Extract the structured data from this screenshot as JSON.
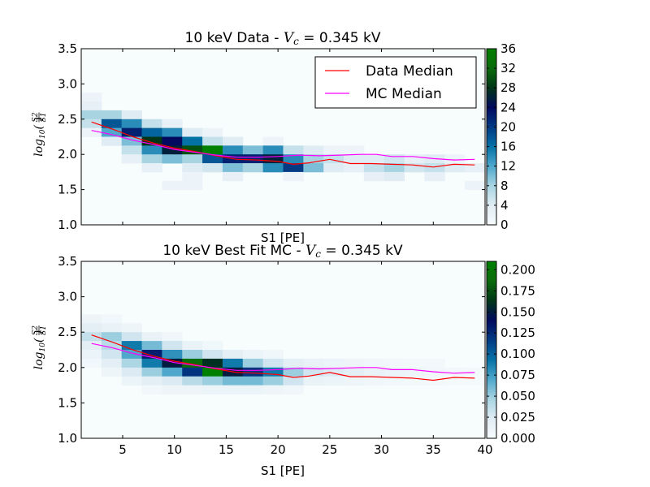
{
  "colors": {
    "data_median": "#ff0000",
    "mc_median": "#ff00ff",
    "colormap": [
      "#f7fcfd",
      "#e0ecf4",
      "#a8d4e2",
      "#4fa8cc",
      "#0572a6",
      "#023a84",
      "#010a5e",
      "#003617",
      "#0b6b0b",
      "#008000"
    ]
  },
  "chart_data": [
    {
      "type": "heatmap",
      "title": "10 keV Data - V_c = 0.345 kV",
      "title_parts": {
        "prefix": "10 keV Data - ",
        "var": "V",
        "sub": "c",
        "suffix": " = 0.345 kV"
      },
      "xlabel": "S1 [PE]",
      "ylabel": "log10(S2/S1)",
      "xlim": [
        1,
        40
      ],
      "ylim": [
        1.0,
        3.5
      ],
      "xticks": [
        5,
        10,
        15,
        20,
        25,
        30,
        35,
        40
      ],
      "xtick_labels_shown": false,
      "yticks": [
        1.0,
        1.5,
        2.0,
        2.5,
        3.0,
        3.5
      ],
      "grid": false,
      "legend": {
        "placement": "top-right",
        "entries": [
          "Data Median",
          "MC Median"
        ]
      },
      "colorbar": {
        "range": [
          0,
          36
        ],
        "ticks": [
          "0",
          "4",
          "8",
          "12",
          "16",
          "20",
          "24",
          "28",
          "32",
          "36"
        ]
      },
      "bins": {
        "x_start": 1,
        "x_width": 1.95,
        "y_start": 1.0,
        "y_height": 0.125
      },
      "cells": [
        [
          0,
          14,
          2
        ],
        [
          0,
          13,
          3
        ],
        [
          0,
          12,
          8
        ],
        [
          0,
          11,
          6
        ],
        [
          0,
          10,
          2
        ],
        [
          1,
          12,
          8
        ],
        [
          1,
          11,
          18
        ],
        [
          1,
          10,
          12
        ],
        [
          1,
          9,
          4
        ],
        [
          2,
          12,
          4
        ],
        [
          2,
          11,
          14
        ],
        [
          2,
          10,
          22
        ],
        [
          2,
          9,
          10
        ],
        [
          2,
          8,
          6
        ],
        [
          2,
          7,
          3
        ],
        [
          3,
          11,
          6
        ],
        [
          3,
          10,
          17
        ],
        [
          3,
          9,
          28
        ],
        [
          3,
          8,
          14
        ],
        [
          3,
          7,
          8
        ],
        [
          3,
          6,
          3
        ],
        [
          4,
          11,
          3
        ],
        [
          4,
          10,
          14
        ],
        [
          4,
          9,
          24
        ],
        [
          4,
          8,
          26
        ],
        [
          4,
          7,
          10
        ],
        [
          4,
          4,
          2
        ],
        [
          5,
          10,
          4
        ],
        [
          5,
          9,
          16
        ],
        [
          5,
          8,
          30
        ],
        [
          5,
          7,
          8
        ],
        [
          5,
          6,
          4
        ],
        [
          5,
          5,
          2
        ],
        [
          5,
          4,
          2
        ],
        [
          6,
          10,
          2
        ],
        [
          6,
          9,
          6
        ],
        [
          6,
          8,
          36
        ],
        [
          6,
          7,
          18
        ],
        [
          6,
          6,
          5
        ],
        [
          7,
          9,
          4
        ],
        [
          7,
          8,
          14
        ],
        [
          7,
          7,
          22
        ],
        [
          7,
          6,
          10
        ],
        [
          7,
          5,
          3
        ],
        [
          8,
          8,
          10
        ],
        [
          8,
          7,
          22
        ],
        [
          8,
          6,
          8
        ],
        [
          9,
          9,
          2
        ],
        [
          9,
          8,
          14
        ],
        [
          9,
          7,
          26
        ],
        [
          9,
          6,
          14
        ],
        [
          10,
          8,
          6
        ],
        [
          10,
          7,
          14
        ],
        [
          10,
          6,
          20
        ],
        [
          10,
          5,
          2
        ],
        [
          11,
          8,
          4
        ],
        [
          11,
          7,
          8
        ],
        [
          11,
          6,
          10
        ],
        [
          12,
          8,
          2
        ],
        [
          12,
          7,
          6
        ],
        [
          12,
          6,
          4
        ],
        [
          13,
          8,
          2
        ],
        [
          13,
          7,
          4
        ],
        [
          13,
          6,
          3
        ],
        [
          14,
          7,
          4
        ],
        [
          14,
          6,
          6
        ],
        [
          14,
          5,
          3
        ],
        [
          15,
          7,
          5
        ],
        [
          15,
          6,
          8
        ],
        [
          15,
          5,
          4
        ],
        [
          16,
          7,
          3
        ],
        [
          16,
          6,
          5
        ],
        [
          17,
          7,
          4
        ],
        [
          17,
          6,
          6
        ],
        [
          17,
          5,
          3
        ],
        [
          18,
          7,
          2
        ],
        [
          18,
          6,
          4
        ],
        [
          19,
          6,
          3
        ],
        [
          19,
          4,
          2
        ],
        [
          20,
          6,
          2
        ],
        [
          21,
          6,
          2
        ],
        [
          22,
          6,
          2
        ],
        [
          23,
          7,
          2
        ],
        [
          23,
          6,
          3
        ],
        [
          24,
          6,
          2
        ],
        [
          25,
          6,
          2
        ],
        [
          26,
          6,
          3
        ],
        [
          27,
          7,
          2
        ]
      ],
      "series": [
        {
          "name": "Data Median",
          "x": [
            2,
            4,
            6,
            8,
            10,
            12,
            14,
            16,
            18,
            20,
            21.5,
            23,
            25,
            27,
            29,
            31,
            33,
            35,
            37,
            39
          ],
          "y": [
            2.46,
            2.36,
            2.25,
            2.16,
            2.09,
            2.04,
            1.98,
            1.93,
            1.92,
            1.9,
            1.86,
            1.88,
            1.93,
            1.87,
            1.87,
            1.86,
            1.85,
            1.82,
            1.86,
            1.85
          ]
        },
        {
          "name": "MC Median",
          "x": [
            2,
            4,
            6,
            8,
            10,
            12,
            14,
            16,
            18,
            20,
            22,
            24,
            26,
            28,
            29.5,
            31,
            33,
            35,
            37,
            39
          ],
          "y": [
            2.34,
            2.28,
            2.2,
            2.14,
            2.07,
            2.03,
            1.99,
            1.96,
            1.96,
            1.97,
            1.99,
            1.98,
            1.99,
            2.0,
            2.0,
            1.97,
            1.97,
            1.94,
            1.92,
            1.93
          ]
        }
      ]
    },
    {
      "type": "heatmap",
      "title": "10 keV Best Fit MC - V_c = 0.345 kV",
      "title_parts": {
        "prefix": "10 keV Best Fit MC - ",
        "var": "V",
        "sub": "c",
        "suffix": " = 0.345 kV"
      },
      "xlabel": "S1 [PE]",
      "ylabel": "log10(S2/S1)",
      "xlim": [
        1,
        40
      ],
      "ylim": [
        1.0,
        3.5
      ],
      "xticks": [
        5,
        10,
        15,
        20,
        25,
        30,
        35,
        40
      ],
      "xtick_labels_shown": true,
      "yticks": [
        1.0,
        1.5,
        2.0,
        2.5,
        3.0,
        3.5
      ],
      "grid": false,
      "colorbar": {
        "range": [
          0,
          0.21
        ],
        "ticks": [
          "0.000",
          "0.025",
          "0.050",
          "0.075",
          "0.100",
          "0.125",
          "0.150",
          "0.175",
          "0.200"
        ]
      },
      "bins": {
        "x_start": 1,
        "x_width": 1.95,
        "y_start": 1.0,
        "y_height": 0.125
      },
      "cells": [
        [
          0,
          13,
          0.01
        ],
        [
          0,
          12,
          0.02
        ],
        [
          0,
          11,
          0.035
        ],
        [
          0,
          10,
          0.02
        ],
        [
          0,
          9,
          0.012
        ],
        [
          0,
          8,
          0.006
        ],
        [
          1,
          13,
          0.006
        ],
        [
          1,
          12,
          0.015
        ],
        [
          1,
          11,
          0.05
        ],
        [
          1,
          10,
          0.04
        ],
        [
          1,
          9,
          0.03
        ],
        [
          1,
          8,
          0.02
        ],
        [
          1,
          7,
          0.01
        ],
        [
          2,
          12,
          0.01
        ],
        [
          2,
          11,
          0.03
        ],
        [
          2,
          10,
          0.09
        ],
        [
          2,
          9,
          0.07
        ],
        [
          2,
          8,
          0.045
        ],
        [
          2,
          7,
          0.025
        ],
        [
          2,
          6,
          0.012
        ],
        [
          3,
          11,
          0.015
        ],
        [
          3,
          10,
          0.06
        ],
        [
          3,
          9,
          0.13
        ],
        [
          3,
          8,
          0.09
        ],
        [
          3,
          7,
          0.05
        ],
        [
          3,
          6,
          0.02
        ],
        [
          3,
          5,
          0.006
        ],
        [
          4,
          11,
          0.008
        ],
        [
          4,
          10,
          0.03
        ],
        [
          4,
          9,
          0.08
        ],
        [
          4,
          8,
          0.15
        ],
        [
          4,
          7,
          0.07
        ],
        [
          4,
          6,
          0.025
        ],
        [
          4,
          5,
          0.01
        ],
        [
          5,
          10,
          0.015
        ],
        [
          5,
          9,
          0.05
        ],
        [
          5,
          8,
          0.19
        ],
        [
          5,
          7,
          0.12
        ],
        [
          5,
          6,
          0.04
        ],
        [
          5,
          5,
          0.01
        ],
        [
          6,
          10,
          0.008
        ],
        [
          6,
          9,
          0.03
        ],
        [
          6,
          8,
          0.16
        ],
        [
          6,
          7,
          0.21
        ],
        [
          6,
          6,
          0.05
        ],
        [
          6,
          5,
          0.012
        ],
        [
          7,
          9,
          0.02
        ],
        [
          7,
          8,
          0.09
        ],
        [
          7,
          7,
          0.15
        ],
        [
          7,
          6,
          0.06
        ],
        [
          7,
          5,
          0.012
        ],
        [
          8,
          9,
          0.012
        ],
        [
          8,
          8,
          0.05
        ],
        [
          8,
          7,
          0.12
        ],
        [
          8,
          6,
          0.06
        ],
        [
          8,
          5,
          0.012
        ],
        [
          9,
          9,
          0.008
        ],
        [
          9,
          8,
          0.03
        ],
        [
          9,
          7,
          0.09
        ],
        [
          9,
          6,
          0.05
        ],
        [
          9,
          5,
          0.01
        ],
        [
          10,
          8,
          0.02
        ],
        [
          10,
          7,
          0.05
        ],
        [
          10,
          6,
          0.03
        ],
        [
          10,
          5,
          0.008
        ],
        [
          11,
          8,
          0.015
        ],
        [
          11,
          7,
          0.03
        ],
        [
          11,
          6,
          0.015
        ],
        [
          12,
          8,
          0.012
        ],
        [
          12,
          7,
          0.025
        ],
        [
          12,
          6,
          0.012
        ],
        [
          13,
          8,
          0.01
        ],
        [
          13,
          7,
          0.02
        ],
        [
          13,
          6,
          0.01
        ],
        [
          14,
          8,
          0.008
        ],
        [
          14,
          7,
          0.015
        ],
        [
          14,
          6,
          0.008
        ],
        [
          15,
          8,
          0.006
        ],
        [
          15,
          7,
          0.012
        ],
        [
          15,
          6,
          0.006
        ],
        [
          16,
          8,
          0.005
        ],
        [
          16,
          7,
          0.01
        ],
        [
          16,
          6,
          0.005
        ],
        [
          17,
          8,
          0.004
        ],
        [
          17,
          7,
          0.008
        ],
        [
          17,
          6,
          0.004
        ],
        [
          18,
          7,
          0.006
        ],
        [
          18,
          6,
          0.003
        ],
        [
          19,
          7,
          0.005
        ],
        [
          19,
          6,
          0.003
        ],
        [
          20,
          7,
          0.004
        ],
        [
          20,
          6,
          0.002
        ]
      ],
      "series": [
        {
          "name": "Data Median",
          "x": [
            2,
            4,
            6,
            8,
            10,
            12,
            14,
            16,
            18,
            20,
            21.5,
            23,
            25,
            27,
            29,
            31,
            33,
            35,
            37,
            39
          ],
          "y": [
            2.46,
            2.36,
            2.25,
            2.16,
            2.09,
            2.04,
            1.98,
            1.93,
            1.92,
            1.9,
            1.86,
            1.88,
            1.93,
            1.87,
            1.87,
            1.86,
            1.85,
            1.82,
            1.86,
            1.85
          ]
        },
        {
          "name": "MC Median",
          "x": [
            2,
            4,
            6,
            8,
            10,
            12,
            14,
            16,
            18,
            20,
            22,
            24,
            26,
            28,
            29.5,
            31,
            33,
            35,
            37,
            39
          ],
          "y": [
            2.34,
            2.28,
            2.2,
            2.14,
            2.07,
            2.03,
            1.99,
            1.96,
            1.96,
            1.97,
            1.99,
            1.98,
            1.99,
            2.0,
            2.0,
            1.97,
            1.97,
            1.94,
            1.92,
            1.93
          ]
        }
      ]
    }
  ]
}
